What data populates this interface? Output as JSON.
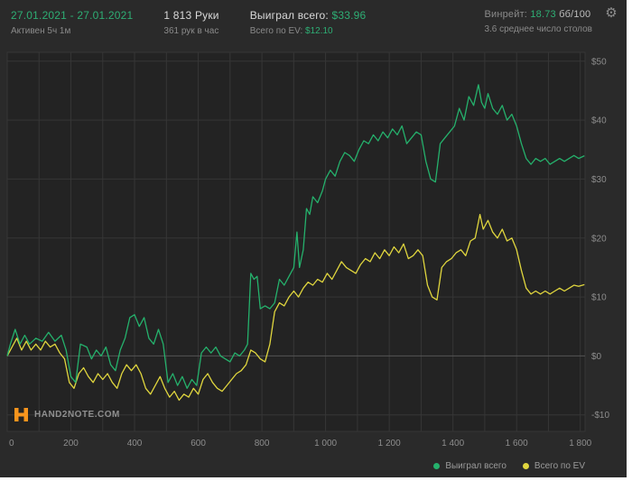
{
  "header": {
    "date_range": "27.01.2021 - 27.01.2021",
    "active_time": "Активен 5ч 1м",
    "hands_total": "1 813 Руки",
    "hands_per_hour": "361 рук в час",
    "won_label": "Выиграл всего:",
    "won_value": "$33.96",
    "ev_label": "Всего по EV:",
    "ev_value": "$12.10",
    "winrate_label": "Винрейт:",
    "winrate_value": "18.73",
    "winrate_unit": "бб/100",
    "avg_tables": "3.6 среднее число столов"
  },
  "icons": {
    "settings_glyph": "⚙"
  },
  "brand": {
    "name": "HAND2NOTE.COM"
  },
  "colors": {
    "page_bg": "#2a2a2a",
    "plot_bg": "#232323",
    "grid": "#363636",
    "zero_line": "#555555",
    "tick_text": "#8d8d8d",
    "accent_green": "#2eae74",
    "line_green": "#25b16c",
    "line_yellow": "#e0d63e",
    "logo_orange": "#f7941d"
  },
  "chart_data": {
    "type": "line",
    "title": "",
    "xlabel": "",
    "ylabel": "",
    "xlim": [
      0,
      1815
    ],
    "ylim": [
      -12.8,
      51.5
    ],
    "grid_x_step": 100,
    "x_ticks": [
      0,
      200,
      400,
      600,
      800,
      1000,
      1200,
      1400,
      1600,
      1800
    ],
    "x_tick_labels": [
      "0",
      "200",
      "400",
      "600",
      "800",
      "1 000",
      "1 200",
      "1 400",
      "1 600",
      "1 800"
    ],
    "y_ticks": [
      -10,
      0,
      10,
      20,
      30,
      40,
      50
    ],
    "y_tick_labels": [
      "-$10",
      "$0",
      "$10",
      "$20",
      "$30",
      "$40",
      "$50"
    ],
    "legend_position": "bottom-right",
    "series": [
      {
        "name": "Выиграл всего",
        "color": "#25b16c",
        "x": [
          0,
          10,
          25,
          40,
          55,
          70,
          90,
          110,
          130,
          150,
          170,
          185,
          200,
          215,
          230,
          250,
          265,
          280,
          295,
          310,
          325,
          340,
          355,
          370,
          385,
          400,
          415,
          430,
          445,
          460,
          475,
          490,
          505,
          520,
          535,
          550,
          565,
          580,
          595,
          610,
          625,
          640,
          655,
          670,
          685,
          700,
          715,
          730,
          745,
          755,
          765,
          775,
          785,
          795,
          810,
          825,
          840,
          855,
          870,
          885,
          900,
          910,
          918,
          930,
          940,
          950,
          960,
          975,
          990,
          1000,
          1015,
          1030,
          1045,
          1060,
          1075,
          1090,
          1105,
          1120,
          1135,
          1150,
          1165,
          1180,
          1195,
          1210,
          1225,
          1240,
          1255,
          1270,
          1285,
          1300,
          1315,
          1330,
          1345,
          1360,
          1375,
          1390,
          1405,
          1420,
          1435,
          1450,
          1465,
          1480,
          1490,
          1500,
          1510,
          1525,
          1540,
          1555,
          1570,
          1585,
          1600,
          1615,
          1630,
          1645,
          1660,
          1675,
          1690,
          1705,
          1720,
          1735,
          1750,
          1765,
          1780,
          1795,
          1813
        ],
        "y": [
          0,
          2,
          4.5,
          2,
          3.5,
          2,
          3,
          2.5,
          4,
          2.5,
          3.5,
          1,
          -3.5,
          -4.5,
          2,
          1.5,
          -0.5,
          1,
          0,
          1.5,
          -1.5,
          -2.5,
          1,
          3,
          6.5,
          7,
          5,
          6.5,
          3,
          2,
          4.5,
          2,
          -4.5,
          -3,
          -5,
          -3.5,
          -5.5,
          -4,
          -5,
          0.5,
          1.5,
          0.5,
          1.5,
          0,
          -0.5,
          -1,
          0.5,
          0,
          1,
          2,
          14,
          13,
          13.5,
          8,
          8.5,
          8,
          9,
          13,
          12,
          13.5,
          15,
          21,
          15,
          18,
          25,
          24,
          27,
          26,
          28,
          30,
          31.5,
          30.5,
          33,
          34.5,
          34,
          33,
          35,
          36.5,
          36,
          37.5,
          36.5,
          38,
          37,
          38.5,
          37.5,
          39,
          36,
          37,
          38,
          37.5,
          33,
          30,
          29.5,
          36,
          37,
          38,
          39,
          42,
          40,
          44,
          42.5,
          46,
          43,
          42,
          44.5,
          42,
          41,
          42.5,
          40,
          41,
          39,
          36,
          33.5,
          32.5,
          33.5,
          33,
          33.5,
          32.5,
          33,
          33.5,
          33,
          33.5,
          34,
          33.5,
          33.96
        ]
      },
      {
        "name": "Всего по EV",
        "color": "#e0d63e",
        "x": [
          0,
          15,
          30,
          45,
          60,
          75,
          90,
          105,
          120,
          135,
          150,
          165,
          180,
          195,
          210,
          225,
          240,
          255,
          270,
          285,
          300,
          315,
          330,
          345,
          360,
          375,
          390,
          405,
          420,
          435,
          450,
          465,
          480,
          495,
          510,
          525,
          540,
          555,
          570,
          585,
          600,
          615,
          630,
          645,
          660,
          675,
          690,
          705,
          720,
          735,
          750,
          765,
          780,
          795,
          810,
          825,
          840,
          855,
          870,
          885,
          900,
          915,
          930,
          945,
          960,
          975,
          990,
          1005,
          1020,
          1035,
          1050,
          1065,
          1080,
          1095,
          1110,
          1125,
          1140,
          1155,
          1170,
          1185,
          1200,
          1215,
          1230,
          1245,
          1260,
          1275,
          1290,
          1305,
          1320,
          1335,
          1350,
          1365,
          1380,
          1395,
          1410,
          1425,
          1440,
          1455,
          1470,
          1485,
          1495,
          1510,
          1525,
          1540,
          1555,
          1570,
          1585,
          1600,
          1615,
          1630,
          1645,
          1660,
          1675,
          1690,
          1705,
          1720,
          1735,
          1750,
          1765,
          1780,
          1795,
          1813
        ],
        "y": [
          0,
          1.5,
          3,
          1,
          2.5,
          1,
          2,
          1,
          2.5,
          1.5,
          2,
          0.5,
          -0.5,
          -4.5,
          -5.5,
          -3,
          -2,
          -3.5,
          -4.5,
          -3,
          -4,
          -3,
          -4.5,
          -5.5,
          -3,
          -1.5,
          -2.5,
          -1.5,
          -3,
          -5.5,
          -6.5,
          -5,
          -3.5,
          -5.5,
          -7,
          -6,
          -7.5,
          -6.5,
          -7,
          -5.5,
          -6.5,
          -4,
          -3,
          -4.5,
          -5.5,
          -6,
          -5,
          -4,
          -3,
          -2.5,
          -1.5,
          1,
          0.5,
          -0.5,
          -1,
          2,
          7.5,
          9,
          8.5,
          10,
          11,
          10,
          11.5,
          12.5,
          12,
          13,
          12.5,
          14,
          13,
          14.5,
          16,
          15,
          14.5,
          14,
          15.5,
          16.5,
          16,
          17.5,
          16.5,
          18,
          17,
          18.5,
          17.5,
          19,
          16.5,
          17,
          18,
          17,
          12,
          10,
          9.5,
          15,
          16,
          16.5,
          17.5,
          18,
          17,
          19.5,
          20,
          24,
          21.5,
          23,
          21,
          20,
          21.5,
          19.5,
          20,
          18,
          14.5,
          11.5,
          10.5,
          11,
          10.5,
          11,
          10.5,
          11,
          11.5,
          11,
          11.5,
          12,
          11.8,
          12.1
        ]
      }
    ]
  }
}
